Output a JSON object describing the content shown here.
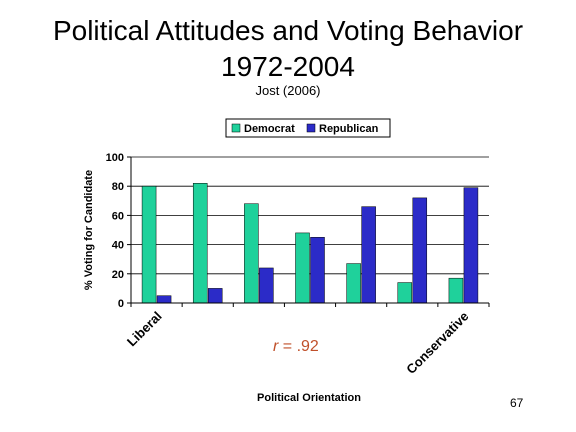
{
  "slide": {
    "title_line1": "Political Attitudes and Voting Behavior",
    "title_line2": "1972-2004",
    "subtitle": "Jost (2006)",
    "page_number": "67"
  },
  "chart_data": {
    "type": "bar",
    "categories": [
      "Liberal",
      "",
      "",
      "",
      "",
      "",
      "Conservative"
    ],
    "series": [
      {
        "name": "Democrat",
        "color": "#1fd19b",
        "values": [
          80,
          82,
          68,
          48,
          27,
          14,
          17
        ]
      },
      {
        "name": "Republican",
        "color": "#2b2bc8",
        "values": [
          5,
          10,
          24,
          45,
          66,
          72,
          79
        ]
      }
    ],
    "ylabel": "% Voting for Candidate",
    "xlabel": "Political Orientation",
    "ylim": [
      0,
      100
    ],
    "yticks": [
      0,
      20,
      40,
      60,
      80,
      100
    ],
    "grid": true,
    "legend_position": "top",
    "annotation": {
      "r_label": "r",
      "r_value": " = .92",
      "color": "#c0502a"
    }
  }
}
